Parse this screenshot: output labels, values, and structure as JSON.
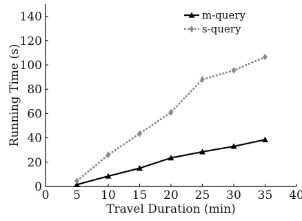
{
  "chart_data": {
    "type": "line",
    "xlabel": "Travel Duration (min)",
    "ylabel": "Running Time (s)",
    "xlim": [
      0,
      40
    ],
    "ylim": [
      0,
      150
    ],
    "x_ticks": [
      "0",
      "5",
      "10",
      "15",
      "20",
      "25",
      "30",
      "35",
      "40"
    ],
    "y_ticks": [
      "0",
      "20",
      "40",
      "60",
      "80",
      "100",
      "120",
      "140"
    ],
    "x": [
      5,
      10,
      15,
      20,
      25,
      30,
      35
    ],
    "series": [
      {
        "name": "m-query",
        "values": [
          1.5,
          8.5,
          15,
          23.5,
          28.5,
          33,
          38.5
        ],
        "color": "#000000",
        "marker": "triangle",
        "style": "solid"
      },
      {
        "name": "s-query",
        "values": [
          4.5,
          26,
          43.5,
          61,
          88,
          95.5,
          106.5
        ],
        "color": "#8a8a8a",
        "marker": "diamond",
        "style": "dotted"
      }
    ],
    "legend_position": "top-right",
    "grid": false
  }
}
